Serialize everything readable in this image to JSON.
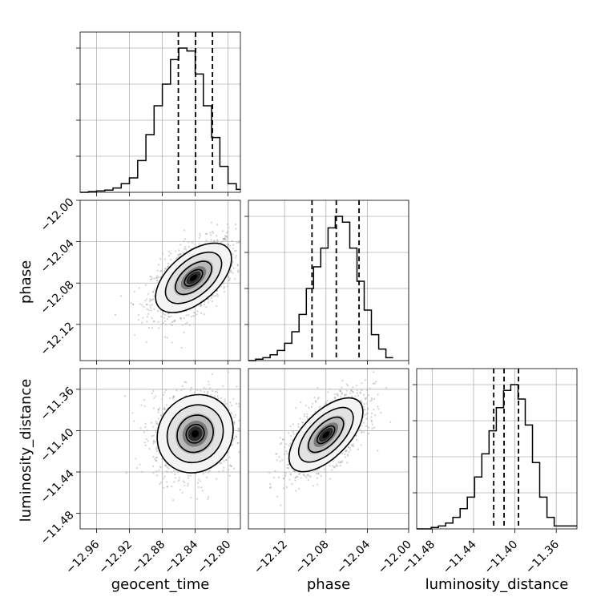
{
  "chart_data": {
    "type": "corner",
    "parameters": [
      "geocent_time",
      "phase",
      "luminosity_distance"
    ],
    "ranges": {
      "geocent_time": [
        -12.98,
        -12.785
      ],
      "phase": [
        -12.155,
        -12.0
      ],
      "luminosity_distance": [
        -11.495,
        -11.34
      ]
    },
    "ticks": {
      "geocent_time": [
        -12.96,
        -12.92,
        -12.88,
        -12.84,
        -12.8
      ],
      "phase": [
        -12.12,
        -12.08,
        -12.04,
        -12.0
      ],
      "luminosity_distance": [
        -11.48,
        -11.44,
        -11.4,
        -11.36
      ]
    },
    "tick_labels": {
      "geocent_time": [
        "−12.96",
        "−12.92",
        "−12.88",
        "−12.84",
        "−12.80"
      ],
      "phase": [
        "−12.12",
        "−12.08",
        "−12.04",
        "−12.00"
      ],
      "luminosity_distance": [
        "−11.48",
        "−11.44",
        "−11.40",
        "−11.36"
      ]
    },
    "hist_yticks": [
      0.25,
      0.5,
      0.75,
      1.0
    ],
    "quantiles": {
      "geocent_time": [
        -12.8605,
        -12.8395,
        -12.819
      ],
      "phase": [
        -12.07,
        -12.0935,
        -12.048
      ],
      "luminosity_distance": [
        -11.4205,
        -11.4105,
        -11.3965
      ]
    },
    "histograms": {
      "geocent_time": {
        "edges": [
          -12.98,
          -12.97,
          -12.96,
          -12.95,
          -12.94,
          -12.93,
          -12.92,
          -12.91,
          -12.9,
          -12.89,
          -12.88,
          -12.87,
          -12.86,
          -12.85,
          -12.84,
          -12.83,
          -12.82,
          -12.81,
          -12.8,
          -12.79,
          -12.785
        ],
        "counts": [
          0.0,
          0.005,
          0.01,
          0.015,
          0.03,
          0.06,
          0.1,
          0.22,
          0.4,
          0.6,
          0.75,
          0.92,
          1.0,
          0.98,
          0.82,
          0.6,
          0.38,
          0.18,
          0.06,
          0.02
        ]
      },
      "phase": {
        "edges": [
          -12.155,
          -12.148,
          -12.141,
          -12.134,
          -12.127,
          -12.12,
          -12.113,
          -12.106,
          -12.099,
          -12.092,
          -12.085,
          -12.078,
          -12.071,
          -12.064,
          -12.057,
          -12.05,
          -12.043,
          -12.036,
          -12.029,
          -12.022,
          -12.015
        ],
        "counts": [
          0.0,
          0.01,
          0.02,
          0.04,
          0.07,
          0.12,
          0.2,
          0.32,
          0.5,
          0.65,
          0.78,
          0.92,
          1.0,
          0.96,
          0.78,
          0.55,
          0.35,
          0.18,
          0.08,
          0.02
        ]
      },
      "luminosity_distance": {
        "edges": [
          -11.495,
          -11.488,
          -11.481,
          -11.474,
          -11.467,
          -11.46,
          -11.453,
          -11.446,
          -11.439,
          -11.432,
          -11.425,
          -11.418,
          -11.411,
          -11.404,
          -11.397,
          -11.39,
          -11.383,
          -11.376,
          -11.369,
          -11.362,
          -11.34
        ],
        "counts": [
          0.0,
          0.0,
          0.01,
          0.02,
          0.04,
          0.08,
          0.14,
          0.22,
          0.36,
          0.52,
          0.68,
          0.84,
          0.96,
          1.0,
          0.9,
          0.72,
          0.46,
          0.22,
          0.08,
          0.02
        ]
      }
    },
    "pairs": [
      {
        "x": "geocent_time",
        "y": "phase",
        "center": [
          -12.842,
          -12.075
        ],
        "sigma": [
          0.022,
          0.016
        ],
        "corr": 0.55
      },
      {
        "x": "geocent_time",
        "y": "luminosity_distance",
        "center": [
          -12.84,
          -11.403
        ],
        "sigma": [
          0.022,
          0.018
        ],
        "corr": 0.1
      },
      {
        "x": "phase",
        "y": "luminosity_distance",
        "center": [
          -12.08,
          -11.404
        ],
        "sigma": [
          0.017,
          0.017
        ],
        "corr": 0.62
      }
    ],
    "contour_levels": [
      0.5,
      1.0,
      1.5,
      2.0
    ],
    "colors": {
      "line": "#000000",
      "grid": "#b0b0b0",
      "points": "#808080",
      "background": "#ffffff"
    },
    "grid": true
  }
}
